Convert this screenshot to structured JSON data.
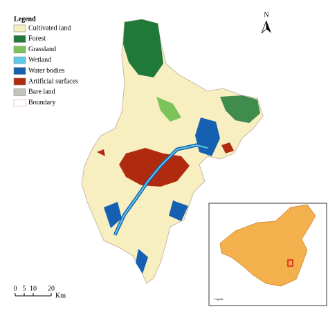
{
  "legend": {
    "title": "Legend",
    "items": [
      {
        "label": "Cultivated land",
        "color": "#f7efc0"
      },
      {
        "label": "Forest",
        "color": "#1f7a3a"
      },
      {
        "label": "Grassland",
        "color": "#7cc45a"
      },
      {
        "label": "Wetland",
        "color": "#5ec8e8"
      },
      {
        "label": "Water bodies",
        "color": "#1560b0"
      },
      {
        "label": "Artificial surfaces",
        "color": "#b02a10"
      },
      {
        "label": "Bare land",
        "color": "#c4c4bc"
      },
      {
        "label": "Boundary",
        "color": "#ffffff"
      }
    ]
  },
  "north_label": "N",
  "scale_bar": {
    "ticks": [
      0,
      5,
      10,
      20
    ],
    "unit": "Km"
  },
  "inset": {
    "legend_title": "Legend"
  }
}
